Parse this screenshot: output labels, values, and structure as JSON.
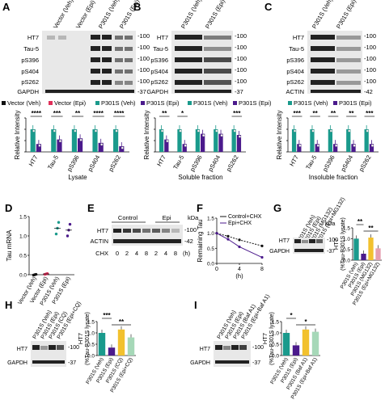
{
  "panels": {
    "A": {
      "letter": "A",
      "lanes": [
        "Vector (Veh)",
        "Vector (Epi)",
        "P301S (Veh)",
        "P301S (Epi)"
      ],
      "blots": [
        "HT7",
        "Tau-5",
        "pS396",
        "pS404",
        "pS262",
        "GAPDH"
      ],
      "kda": [
        "-100",
        "-100",
        "-100",
        "-100",
        "-100",
        "-37"
      ],
      "legend": [
        "Vector (Veh)",
        "Vector (Epi)",
        "P301S (Veh)",
        "P301S (Epi)"
      ],
      "ylabel": "Relative Intensity",
      "xlabel": "Lysate",
      "sig": [
        "****",
        "***",
        "**",
        "****",
        "****"
      ]
    },
    "B": {
      "letter": "B",
      "lanes": [
        "P301S (Veh)",
        "P301S (Epi)"
      ],
      "blots": [
        "HT7",
        "Tau-5",
        "pS396",
        "pS404",
        "pS262",
        "GAPDH"
      ],
      "kda": [
        "-100",
        "-100",
        "-100",
        "-100",
        "-100",
        "-37"
      ],
      "legend": [
        "P301S (Veh)",
        "P301S (Epi)"
      ],
      "ylabel": "Relative Intensity",
      "xlabel": "Soluble fraction",
      "sig": [
        "**",
        "*",
        "",
        "",
        "***"
      ]
    },
    "C": {
      "letter": "C",
      "lanes": [
        "P301S (Veh)",
        "P301S (Epi)"
      ],
      "blots": [
        "HT7",
        "Tau-5",
        "pS396",
        "pS404",
        "pS262",
        "ACTIN"
      ],
      "kda": [
        "-100",
        "-100",
        "-100",
        "-100",
        "-100",
        "-42"
      ],
      "legend": [
        "P301S (Veh)",
        "P301S (Epi)"
      ],
      "ylabel": "Relative Intensity",
      "xlabel": "Insoluble fraction",
      "sig": [
        "***",
        "**",
        "**",
        "**",
        "***"
      ]
    },
    "D": {
      "letter": "D",
      "ylabel": "Tau mRNA",
      "yticks": [
        "1.5",
        "1.0",
        "0.5",
        "0.0"
      ]
    },
    "E": {
      "letter": "E",
      "groups": [
        "Control",
        "Epi"
      ],
      "blots": [
        "HT7",
        "ACTIN"
      ],
      "kda_head": "kDa",
      "kda": [
        "-100",
        "-42"
      ],
      "chx_label": "CHX",
      "times": [
        "0",
        "2",
        "4",
        "8",
        "2",
        "4",
        "8"
      ],
      "unit": "(h)"
    },
    "F": {
      "letter": "F",
      "ylabel": "Remaining Tau",
      "xlabel": "(h)",
      "legend": [
        "Control+CHX",
        "Epi+CHX"
      ],
      "yticks": [
        "1.5",
        "1.0",
        "0.5",
        "0.0"
      ],
      "xticks": [
        "0",
        "4",
        "8"
      ]
    },
    "G": {
      "letter": "G",
      "lanes": [
        "P301S (Veh)",
        "P301S (Epi)",
        "P301S (MG132)",
        "P301S (Epi+MG132)"
      ],
      "blots": [
        "HT7",
        "GAPDH"
      ],
      "kda_head": "kDa",
      "kda": [
        "-100",
        "-37"
      ],
      "ylabel": "HT7",
      "ylabel2": "(%Tau-P301S lysate)",
      "sig": [
        "**",
        "**"
      ]
    },
    "H": {
      "letter": "H",
      "lanes": [
        "P301S (Veh)",
        "P301S (Epi)",
        "P301S (CQ)",
        "P301S (Epi+CQ)"
      ],
      "blots": [
        "HT7",
        "GAPDH"
      ],
      "kda": [
        "-100",
        "-37"
      ],
      "ylabel": "HT7",
      "ylabel2": "(%Tau-P301S lysate)",
      "sig": [
        "***",
        "**"
      ]
    },
    "I": {
      "letter": "I",
      "lanes": [
        "P301S (Veh)",
        "P301S (Epi)",
        "P301S (Baf A1)",
        "P301S (Epi+Baf A1)"
      ],
      "blots": [
        "HT7",
        "GAPDH"
      ],
      "kda": [
        "-100",
        "-37"
      ],
      "ylabel": "HT7",
      "ylabel2": "(%Tau-P301S lysate)",
      "sig": [
        "*",
        "*"
      ]
    }
  },
  "colors": {
    "teal": "#1a9a8c",
    "purple": "#4b1a8c",
    "pink": "#e0305a",
    "black": "#111111",
    "yellow": "#f2c12e",
    "mint": "#a6d8b8"
  },
  "chart_data": [
    {
      "panel": "A",
      "type": "bar",
      "categories": [
        "HT7",
        "Tau-5",
        "pS396",
        "pS404",
        "pS262"
      ],
      "series": [
        {
          "name": "P301S (Veh)",
          "values": [
            1.0,
            1.0,
            1.0,
            1.0,
            1.0
          ]
        },
        {
          "name": "P301S (Epi)",
          "values": [
            0.35,
            0.55,
            0.6,
            0.4,
            0.25
          ]
        }
      ],
      "ylabel": "Relative Intensity",
      "xlabel": "Lysate",
      "ylim": [
        0,
        1.5
      ]
    },
    {
      "panel": "B",
      "type": "bar",
      "categories": [
        "HT7",
        "Tau-5",
        "pS396",
        "pS404",
        "pS262"
      ],
      "series": [
        {
          "name": "P301S (Veh)",
          "values": [
            1.0,
            1.0,
            1.0,
            1.0,
            1.0
          ]
        },
        {
          "name": "P301S (Epi)",
          "values": [
            0.55,
            0.35,
            0.8,
            0.8,
            0.75
          ]
        }
      ],
      "ylabel": "Relative Intensity",
      "xlabel": "Soluble fraction",
      "ylim": [
        0,
        1.5
      ]
    },
    {
      "panel": "C",
      "type": "bar",
      "categories": [
        "HT7",
        "Tau-5",
        "pS396",
        "pS404",
        "pS262"
      ],
      "series": [
        {
          "name": "P301S (Veh)",
          "values": [
            1.0,
            1.0,
            1.0,
            1.0,
            1.0
          ]
        },
        {
          "name": "P301S (Epi)",
          "values": [
            0.35,
            0.35,
            0.35,
            0.35,
            0.35
          ]
        }
      ],
      "ylabel": "Relative Intensity",
      "xlabel": "Insoluble fraction",
      "ylim": [
        0,
        1.5
      ]
    },
    {
      "panel": "D",
      "type": "scatter",
      "categories": [
        "Vector (Veh)",
        "Vector (Epi)",
        "P301S (Veh)",
        "P301S (Epi)"
      ],
      "values": [
        0.0,
        0.02,
        1.2,
        1.15
      ],
      "ylabel": "Tau mRNA",
      "ylim": [
        0,
        1.5
      ]
    },
    {
      "panel": "F",
      "type": "line",
      "x": [
        0,
        2,
        4,
        8
      ],
      "series": [
        {
          "name": "Control+CHX",
          "values": [
            1.0,
            0.9,
            0.78,
            0.58
          ]
        },
        {
          "name": "Epi+CHX",
          "values": [
            1.0,
            0.8,
            0.55,
            0.2
          ]
        }
      ],
      "ylabel": "Remaining Tau",
      "xlabel": "(h)",
      "ylim": [
        0,
        1.5
      ],
      "xlim": [
        0,
        8
      ]
    },
    {
      "panel": "G",
      "type": "bar",
      "categories": [
        "P301S (Veh)",
        "P301S (Epi)",
        "P301S (MG132)",
        "P301S (Epi+MG132)"
      ],
      "values": [
        1.0,
        0.3,
        1.05,
        0.55
      ],
      "ylabel": "HT7 (%Tau-P301S lysate)",
      "ylim": [
        0,
        1.5
      ]
    },
    {
      "panel": "H",
      "type": "bar",
      "categories": [
        "P301S (Veh)",
        "P301S (Epi)",
        "P301S (CQ)",
        "P301S (Epi+CQ)"
      ],
      "values": [
        1.0,
        0.35,
        1.15,
        0.8
      ],
      "ylabel": "HT7 (%Tau-P301S lysate)",
      "ylim": [
        0,
        1.5
      ]
    },
    {
      "panel": "I",
      "type": "bar",
      "categories": [
        "P301S (Veh)",
        "P301S (Epi)",
        "P301S (Baf A1)",
        "P301S (Epi+Baf A1)"
      ],
      "values": [
        1.0,
        0.45,
        1.15,
        1.05
      ],
      "ylabel": "HT7 (%Tau-P301S lysate)",
      "ylim": [
        0,
        1.5
      ]
    }
  ]
}
